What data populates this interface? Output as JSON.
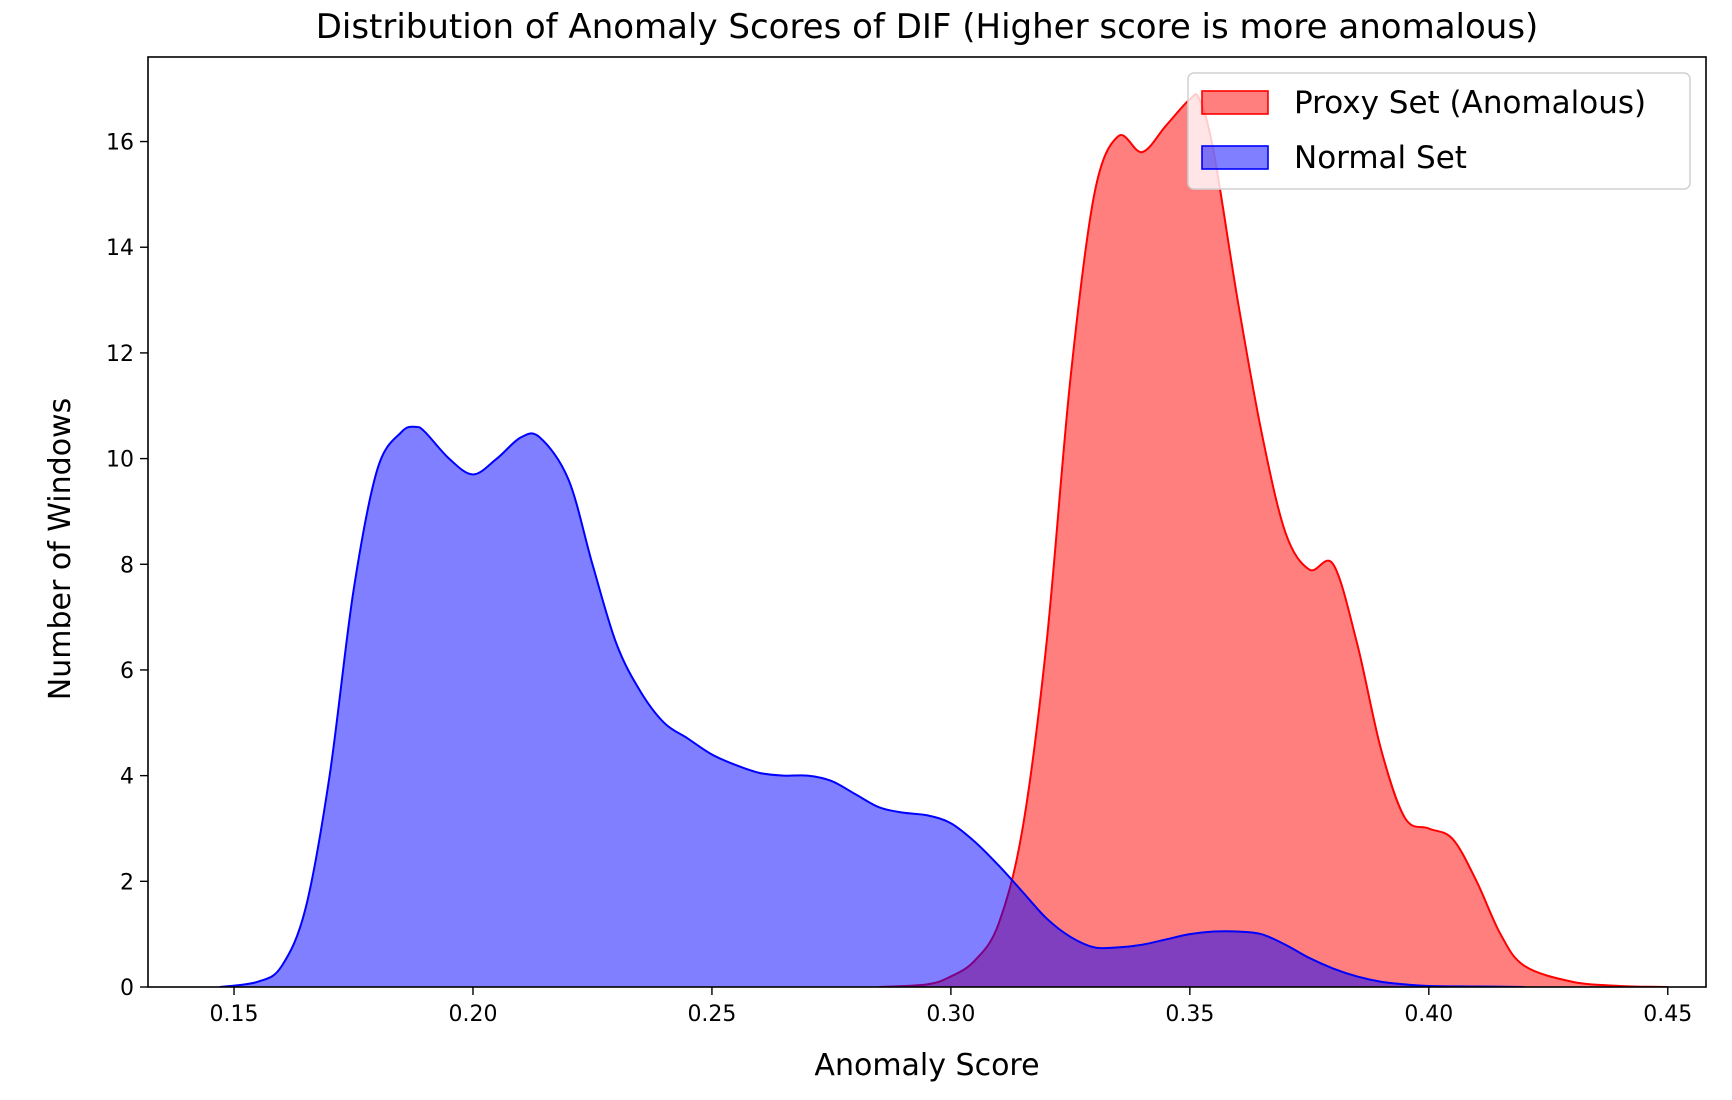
{
  "chart_data": {
    "type": "area",
    "title": "Distribution of Anomaly Scores of DIF (Higher score is more anomalous)",
    "xlabel": "Anomaly Score",
    "ylabel": "Number of Windows",
    "xlim": [
      0.132,
      0.458
    ],
    "ylim": [
      0,
      17.6
    ],
    "xticks": [
      0.15,
      0.2,
      0.25,
      0.3,
      0.35,
      0.4,
      0.45
    ],
    "xtick_labels": [
      "0.15",
      "0.20",
      "0.25",
      "0.30",
      "0.35",
      "0.40",
      "0.45"
    ],
    "yticks": [
      0,
      2,
      4,
      6,
      8,
      10,
      12,
      14,
      16
    ],
    "ytick_labels": [
      "0",
      "2",
      "4",
      "6",
      "8",
      "10",
      "12",
      "14",
      "16"
    ],
    "grid": false,
    "legend_position": "top-right",
    "series": [
      {
        "name": "Proxy Set (Anomalous)",
        "color": "#ff0000",
        "fill_opacity": 0.5,
        "x": [
          0.285,
          0.295,
          0.3,
          0.305,
          0.31,
          0.315,
          0.32,
          0.325,
          0.33,
          0.335,
          0.34,
          0.345,
          0.35,
          0.352,
          0.355,
          0.36,
          0.365,
          0.37,
          0.375,
          0.38,
          0.385,
          0.39,
          0.395,
          0.4,
          0.405,
          0.41,
          0.415,
          0.42,
          0.43,
          0.44,
          0.45
        ],
        "y": [
          0,
          0.05,
          0.2,
          0.5,
          1.2,
          3.0,
          6.5,
          11.5,
          15.0,
          16.1,
          15.8,
          16.3,
          16.8,
          16.8,
          15.8,
          13.0,
          10.5,
          8.6,
          7.9,
          8.0,
          6.5,
          4.5,
          3.2,
          3.0,
          2.8,
          2.0,
          1.0,
          0.4,
          0.1,
          0.02,
          0
        ]
      },
      {
        "name": "Normal Set",
        "color": "#0000ff",
        "fill_opacity": 0.5,
        "x": [
          0.147,
          0.155,
          0.16,
          0.165,
          0.17,
          0.175,
          0.18,
          0.185,
          0.188,
          0.19,
          0.195,
          0.2,
          0.205,
          0.21,
          0.214,
          0.22,
          0.225,
          0.23,
          0.235,
          0.24,
          0.245,
          0.25,
          0.255,
          0.26,
          0.265,
          0.27,
          0.275,
          0.28,
          0.285,
          0.29,
          0.295,
          0.3,
          0.305,
          0.31,
          0.315,
          0.32,
          0.325,
          0.33,
          0.335,
          0.34,
          0.345,
          0.35,
          0.355,
          0.36,
          0.365,
          0.37,
          0.375,
          0.38,
          0.385,
          0.39,
          0.395,
          0.4,
          0.41,
          0.42
        ],
        "y": [
          0,
          0.1,
          0.4,
          1.5,
          4.0,
          7.5,
          9.8,
          10.5,
          10.6,
          10.5,
          10.0,
          9.7,
          10.0,
          10.4,
          10.4,
          9.6,
          8.0,
          6.5,
          5.6,
          5.0,
          4.7,
          4.4,
          4.2,
          4.05,
          4.0,
          4.0,
          3.9,
          3.65,
          3.4,
          3.3,
          3.25,
          3.1,
          2.75,
          2.3,
          1.8,
          1.3,
          0.95,
          0.75,
          0.75,
          0.8,
          0.9,
          1.0,
          1.05,
          1.05,
          1.0,
          0.8,
          0.55,
          0.35,
          0.2,
          0.1,
          0.05,
          0.02,
          0.01,
          0
        ]
      }
    ]
  }
}
